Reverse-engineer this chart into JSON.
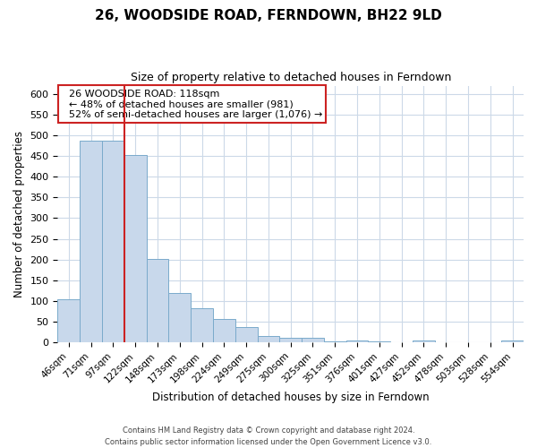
{
  "title": "26, WOODSIDE ROAD, FERNDOWN, BH22 9LD",
  "subtitle": "Size of property relative to detached houses in Ferndown",
  "bar_labels": [
    "46sqm",
    "71sqm",
    "97sqm",
    "122sqm",
    "148sqm",
    "173sqm",
    "198sqm",
    "224sqm",
    "249sqm",
    "275sqm",
    "300sqm",
    "325sqm",
    "351sqm",
    "376sqm",
    "401sqm",
    "427sqm",
    "452sqm",
    "478sqm",
    "503sqm",
    "528sqm",
    "554sqm"
  ],
  "bar_values": [
    105,
    487,
    487,
    453,
    201,
    120,
    82,
    56,
    38,
    16,
    10,
    10,
    3,
    5,
    2,
    0,
    5,
    0,
    0,
    0,
    5
  ],
  "bar_color": "#c8d8eb",
  "bar_edge_color": "#7aaacb",
  "ylabel": "Number of detached properties",
  "xlabel": "Distribution of detached houses by size in Ferndown",
  "ylim": [
    0,
    620
  ],
  "yticks": [
    0,
    50,
    100,
    150,
    200,
    250,
    300,
    350,
    400,
    450,
    500,
    550,
    600
  ],
  "vline_color": "#cc2222",
  "vline_x_bar_index": 2,
  "annotation_title": "26 WOODSIDE ROAD: 118sqm",
  "annotation_line1": "← 48% of detached houses are smaller (981)",
  "annotation_line2": "52% of semi-detached houses are larger (1,076) →",
  "annotation_box_color": "#ffffff",
  "annotation_box_edge": "#cc2222",
  "footer1": "Contains HM Land Registry data © Crown copyright and database right 2024.",
  "footer2": "Contains public sector information licensed under the Open Government Licence v3.0.",
  "background_color": "#ffffff",
  "grid_color": "#ccd9e8"
}
